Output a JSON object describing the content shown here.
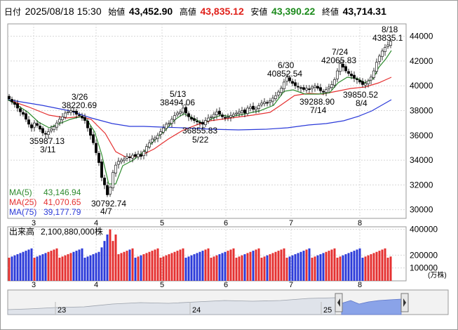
{
  "header": {
    "date_label": "日付",
    "date": "2025/08/18 15:30",
    "open_label": "始値",
    "open": "43,452.90",
    "high_label": "高値",
    "high": "43,835.12",
    "low_label": "安値",
    "low": "43,390.22",
    "close_label": "終値",
    "close": "43,714.31"
  },
  "chart_data": [
    {
      "type": "candlestick",
      "title": "",
      "x_tick_labels": [
        "3",
        "4",
        "5",
        "6",
        "7",
        "8"
      ],
      "y_tick_labels": [
        "44000",
        "42000",
        "40000",
        "38000",
        "36000",
        "34000",
        "32000",
        "30000"
      ],
      "ylim": [
        29300,
        45000
      ],
      "grid": true,
      "ma_legend": [
        {
          "name": "MA(5)",
          "value": "43,146.94",
          "color": "#2e8b2e"
        },
        {
          "name": "MA(25)",
          "value": "41,070.65",
          "color": "#e53030"
        },
        {
          "name": "MA(75)",
          "value": "39,177.79",
          "color": "#2b3ad9"
        }
      ],
      "annotations": [
        {
          "text": "3/26",
          "x": "3/26",
          "y": 38220.69
        },
        {
          "text": "38220.69",
          "x": "3/26",
          "y": 38220.69
        },
        {
          "text": "35987.13",
          "x": "3/11",
          "y": 35987.13
        },
        {
          "text": "3/11",
          "x": "3/11",
          "y": 35987.13
        },
        {
          "text": "30792.74",
          "x": "4/7",
          "y": 30792.74
        },
        {
          "text": "4/7",
          "x": "4/7",
          "y": 30792.74
        },
        {
          "text": "5/13",
          "x": "5/13",
          "y": 38494.06
        },
        {
          "text": "38494.06",
          "x": "5/13",
          "y": 38494.06
        },
        {
          "text": "36855.83",
          "x": "5/22",
          "y": 36855.83
        },
        {
          "text": "5/22",
          "x": "5/22",
          "y": 36855.83
        },
        {
          "text": "6/30",
          "x": "6/30",
          "y": 40852.54
        },
        {
          "text": "40852.54",
          "x": "6/30",
          "y": 40852.54
        },
        {
          "text": "39288.90",
          "x": "7/14",
          "y": 39288.9
        },
        {
          "text": "7/14",
          "x": "7/14",
          "y": 39288.9
        },
        {
          "text": "7/24",
          "x": "7/24",
          "y": 42065.83
        },
        {
          "text": "42065.83",
          "x": "7/24",
          "y": 42065.83
        },
        {
          "text": "39850.52",
          "x": "8/4",
          "y": 39850.52
        },
        {
          "text": "8/4",
          "x": "8/4",
          "y": 39850.52
        },
        {
          "text": "8/18",
          "x": "8/18",
          "y": 43835.1
        },
        {
          "text": "43835.1",
          "x": "8/18",
          "y": 43835.1
        }
      ],
      "up_color": "#ffffff",
      "down_color": "#000000"
    },
    {
      "type": "bar",
      "title_label": "出来高",
      "title_value": "2,100,880,000株",
      "unit": "(万株)",
      "y_tick_labels": [
        "400000",
        "200000",
        "100000"
      ],
      "ylim": [
        0,
        420000
      ],
      "x_tick_labels": [
        "3",
        "4",
        "5",
        "6",
        "7",
        "8"
      ],
      "up_color": "#e53030",
      "down_color": "#2b3ad9"
    },
    {
      "type": "area",
      "role": "overview-navigator",
      "x_tick_labels": [
        "23",
        "24",
        "25"
      ],
      "fill_color": "#dfe3ea",
      "selected_fill_color": "#8aa3e8"
    }
  ]
}
